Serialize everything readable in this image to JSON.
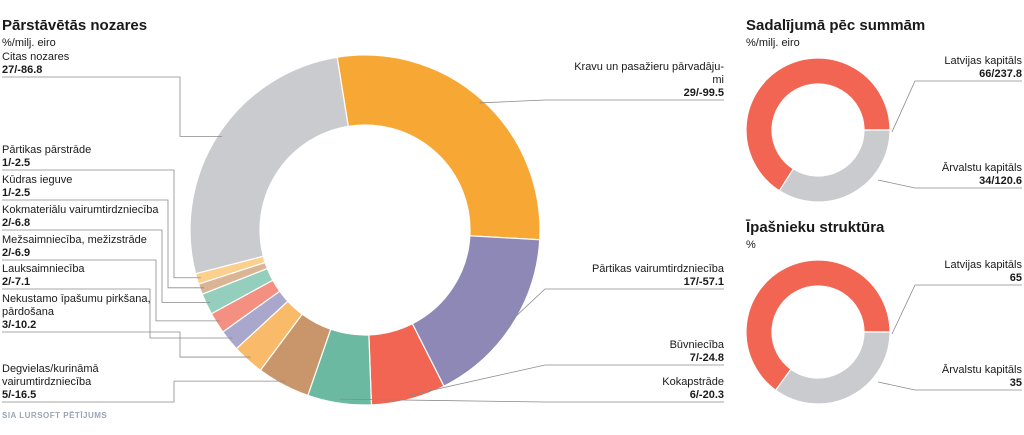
{
  "source": "SIA LURSOFT PĒTĪJUMS",
  "colors": {
    "highlight": "#f26552"
  },
  "chart_data": [
    {
      "type": "pie",
      "donut": true,
      "title": "Pārstāvētās nozares",
      "subtitle": "%/milj. eiro",
      "slices": [
        {
          "label": "Kravu un pasažieru pārvadāju-mi",
          "lines": [
            "Kravu un pasažieru pārvadāju-",
            "mi"
          ],
          "value": 29,
          "value_label": "29/-99.5",
          "color": "#f7a733"
        },
        {
          "label": "Pārtikas vairumtirdzniecība",
          "lines": [
            "Pārtikas vairumtirdzniecība"
          ],
          "value": 17,
          "value_label": "17/-57.1",
          "color": "#8d88b5"
        },
        {
          "label": "Būvniecība",
          "lines": [
            "Būvniecība"
          ],
          "value": 7,
          "value_label": "7/-24.8",
          "color": "#f26552"
        },
        {
          "label": "Kokapstrāde",
          "lines": [
            "Kokapstrāde"
          ],
          "value": 6,
          "value_label": "6/-20.3",
          "color": "#6bb9a0"
        },
        {
          "label": "Degvielas/kurināmā vairumtirdzniecība",
          "lines": [
            "Degvielas/kurināmā",
            "vairumtirdzniecība"
          ],
          "value": 5,
          "value_label": "5/-16.5",
          "color": "#c9956a"
        },
        {
          "label": "Nekustamo īpašumu pirkšana, pārdošana",
          "lines": [
            "Nekustamo īpašumu pirkšana,",
            "pārdošana"
          ],
          "value": 3,
          "value_label": "3/-10.2",
          "color": "#f9bb6a"
        },
        {
          "label": "Lauksaimniecība",
          "lines": [
            "Lauksaimniecība"
          ],
          "value": 2,
          "value_label": "2/-7.1",
          "color": "#aaa7cc"
        },
        {
          "label": "Mežsaimniecība, mežizstrāde",
          "lines": [
            "Mežsaimniecība, mežizstrāde"
          ],
          "value": 2,
          "value_label": "2/-6.9",
          "color": "#f49082"
        },
        {
          "label": "Kokmateriālu vairumtirdzniecība",
          "lines": [
            "Kokmateriālu vairumtirdzniecība"
          ],
          "value": 2,
          "value_label": "2/-6.8",
          "color": "#93cfbc"
        },
        {
          "label": "Kūdras ieguve",
          "lines": [
            "Kūdras ieguve"
          ],
          "value": 1,
          "value_label": "1/-2.5",
          "color": "#d9b596"
        },
        {
          "label": "Pārtikas pārstrāde",
          "lines": [
            "Pārtikas pārstrāde"
          ],
          "value": 1,
          "value_label": "1/-2.5",
          "color": "#fbd08f"
        },
        {
          "label": "Citas nozares",
          "lines": [
            "Citas nozares"
          ],
          "value": 27,
          "value_label": "27/-86.8",
          "color": "#c9cbcf"
        }
      ]
    },
    {
      "type": "pie",
      "donut": true,
      "title": "Sadalījumā pēc summām",
      "subtitle": "%/milj. eiro",
      "slices": [
        {
          "label": "Latvijas kapitāls",
          "value": 66,
          "value_label": "66/237.8",
          "color": "#f26552",
          "highlight": true
        },
        {
          "label": "Ārvalstu kapitāls",
          "value": 34,
          "value_label": "34/120.6",
          "color": "#c9cbcf",
          "highlight": false
        }
      ]
    },
    {
      "type": "pie",
      "donut": true,
      "title": "Īpašnieku struktūra",
      "subtitle": "%",
      "slices": [
        {
          "label": "Latvijas kapitāls",
          "value": 65,
          "value_label": "65",
          "color": "#f26552",
          "highlight": true
        },
        {
          "label": "Ārvalstu kapitāls",
          "value": 35,
          "value_label": "35",
          "color": "#c9cbcf",
          "highlight": false
        }
      ]
    }
  ]
}
